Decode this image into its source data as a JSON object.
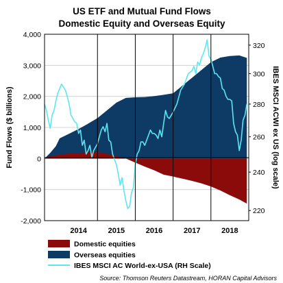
{
  "chart_data": {
    "type": "area",
    "title": "US ETF and Mutual Fund Flows",
    "subtitle": "Domestic Equity and Overseas Equity",
    "ylabel": "Fund Flows ($ billions)",
    "y2label": "IBES MSCI ACWI ex US (log scale)",
    "ylim": [
      -2000,
      4000
    ],
    "y2lim": [
      215,
      328
    ],
    "y2scale": "log",
    "xlim": [
      2013.6,
      2019.0
    ],
    "yticks": [
      "4,000",
      "3,000",
      "2,000",
      "1,000",
      "0",
      "-1,000",
      "-2,000"
    ],
    "y2ticks": [
      "320",
      "300",
      "280",
      "260",
      "240",
      "220"
    ],
    "xticks": [
      "2014",
      "2015",
      "2016",
      "2017",
      "2018"
    ],
    "year_boundaries": [
      2015.0,
      2016.0,
      2017.0,
      2018.0
    ],
    "grid": true,
    "legend_position": "bottom-left",
    "source": "Source: Thomson Reuters Datastream, HORAN Capital Advisors",
    "colors": {
      "domestic": "#8b0b0b",
      "overseas": "#0e3a66",
      "index": "#5ce6f2",
      "grid": "#c8c8c8",
      "plot_bg": "#ffffff"
    },
    "series": [
      {
        "name": "Domestic equities",
        "kind": "area",
        "x": [
          2013.6,
          2013.75,
          2013.9,
          2014.0,
          2014.25,
          2014.5,
          2014.75,
          2015.0,
          2015.25,
          2015.5,
          2015.75,
          2016.0,
          2016.25,
          2016.5,
          2016.75,
          2017.0,
          2017.25,
          2017.5,
          2017.75,
          2018.0,
          2018.25,
          2018.5,
          2018.75,
          2018.95
        ],
        "values": [
          0,
          70,
          100,
          130,
          160,
          180,
          200,
          210,
          150,
          80,
          0,
          -130,
          -260,
          -380,
          -520,
          -580,
          -650,
          -720,
          -800,
          -900,
          -1030,
          -1180,
          -1320,
          -1450
        ]
      },
      {
        "name": "Overseas equities",
        "kind": "area",
        "x": [
          2013.6,
          2013.75,
          2013.9,
          2014.0,
          2014.25,
          2014.5,
          2014.75,
          2015.0,
          2015.25,
          2015.5,
          2015.75,
          2016.0,
          2016.25,
          2016.5,
          2016.75,
          2017.0,
          2017.25,
          2017.5,
          2017.75,
          2018.0,
          2018.25,
          2018.5,
          2018.75,
          2018.95
        ],
        "values": [
          0,
          180,
          400,
          650,
          800,
          950,
          1120,
          1300,
          1550,
          1800,
          1950,
          1970,
          1980,
          2010,
          2050,
          2100,
          2350,
          2600,
          2850,
          3100,
          3250,
          3300,
          3320,
          3240
        ]
      },
      {
        "name": "IBES MSCI AC World-ex-USA (RH Scale)",
        "kind": "line",
        "axis": "right",
        "x": [
          2013.6,
          2013.65,
          2013.7,
          2013.75,
          2013.8,
          2013.85,
          2013.9,
          2013.95,
          2014.0,
          2014.05,
          2014.1,
          2014.15,
          2014.2,
          2014.25,
          2014.3,
          2014.35,
          2014.4,
          2014.45,
          2014.5,
          2014.55,
          2014.6,
          2014.65,
          2014.7,
          2014.75,
          2014.8,
          2014.85,
          2014.9,
          2014.95,
          2015.0,
          2015.05,
          2015.1,
          2015.15,
          2015.2,
          2015.25,
          2015.3,
          2015.35,
          2015.4,
          2015.45,
          2015.5,
          2015.55,
          2015.6,
          2015.65,
          2015.7,
          2015.75,
          2015.8,
          2015.85,
          2015.9,
          2015.95,
          2016.0,
          2016.05,
          2016.1,
          2016.15,
          2016.2,
          2016.25,
          2016.3,
          2016.35,
          2016.4,
          2016.45,
          2016.5,
          2016.55,
          2016.6,
          2016.65,
          2016.7,
          2016.75,
          2016.8,
          2016.85,
          2016.9,
          2016.95,
          2017.0,
          2017.1,
          2017.2,
          2017.3,
          2017.4,
          2017.5,
          2017.55,
          2017.6,
          2017.65,
          2017.7,
          2017.75,
          2017.8,
          2017.85,
          2017.9,
          2017.95,
          2018.0,
          2018.05,
          2018.1,
          2018.15,
          2018.2,
          2018.25,
          2018.3,
          2018.35,
          2018.4,
          2018.45,
          2018.5,
          2018.55,
          2018.6,
          2018.65,
          2018.7,
          2018.75,
          2018.8,
          2018.85,
          2018.9,
          2018.95
        ],
        "values": [
          280,
          276,
          270,
          265,
          273,
          276,
          282,
          287,
          290,
          293,
          291,
          289,
          285,
          280,
          273,
          271,
          269,
          268,
          262,
          264,
          255,
          258,
          250,
          252,
          255,
          248,
          252,
          254,
          256,
          260,
          264,
          266,
          263,
          268,
          258,
          257,
          250,
          247,
          244,
          239,
          233,
          237,
          230,
          225,
          221,
          222,
          229,
          232,
          244,
          250,
          252,
          257,
          257,
          255,
          258,
          261,
          264,
          262,
          262,
          261,
          259,
          264,
          260,
          268,
          276,
          272,
          271,
          273,
          275,
          280,
          289,
          293,
          300,
          302,
          305,
          300,
          308,
          306,
          311,
          314,
          318,
          324,
          312,
          310,
          305,
          300,
          300,
          298,
          297,
          290,
          289,
          285,
          283,
          283,
          282,
          268,
          263,
          261,
          252,
          258,
          270,
          273,
          280
        ]
      }
    ]
  }
}
